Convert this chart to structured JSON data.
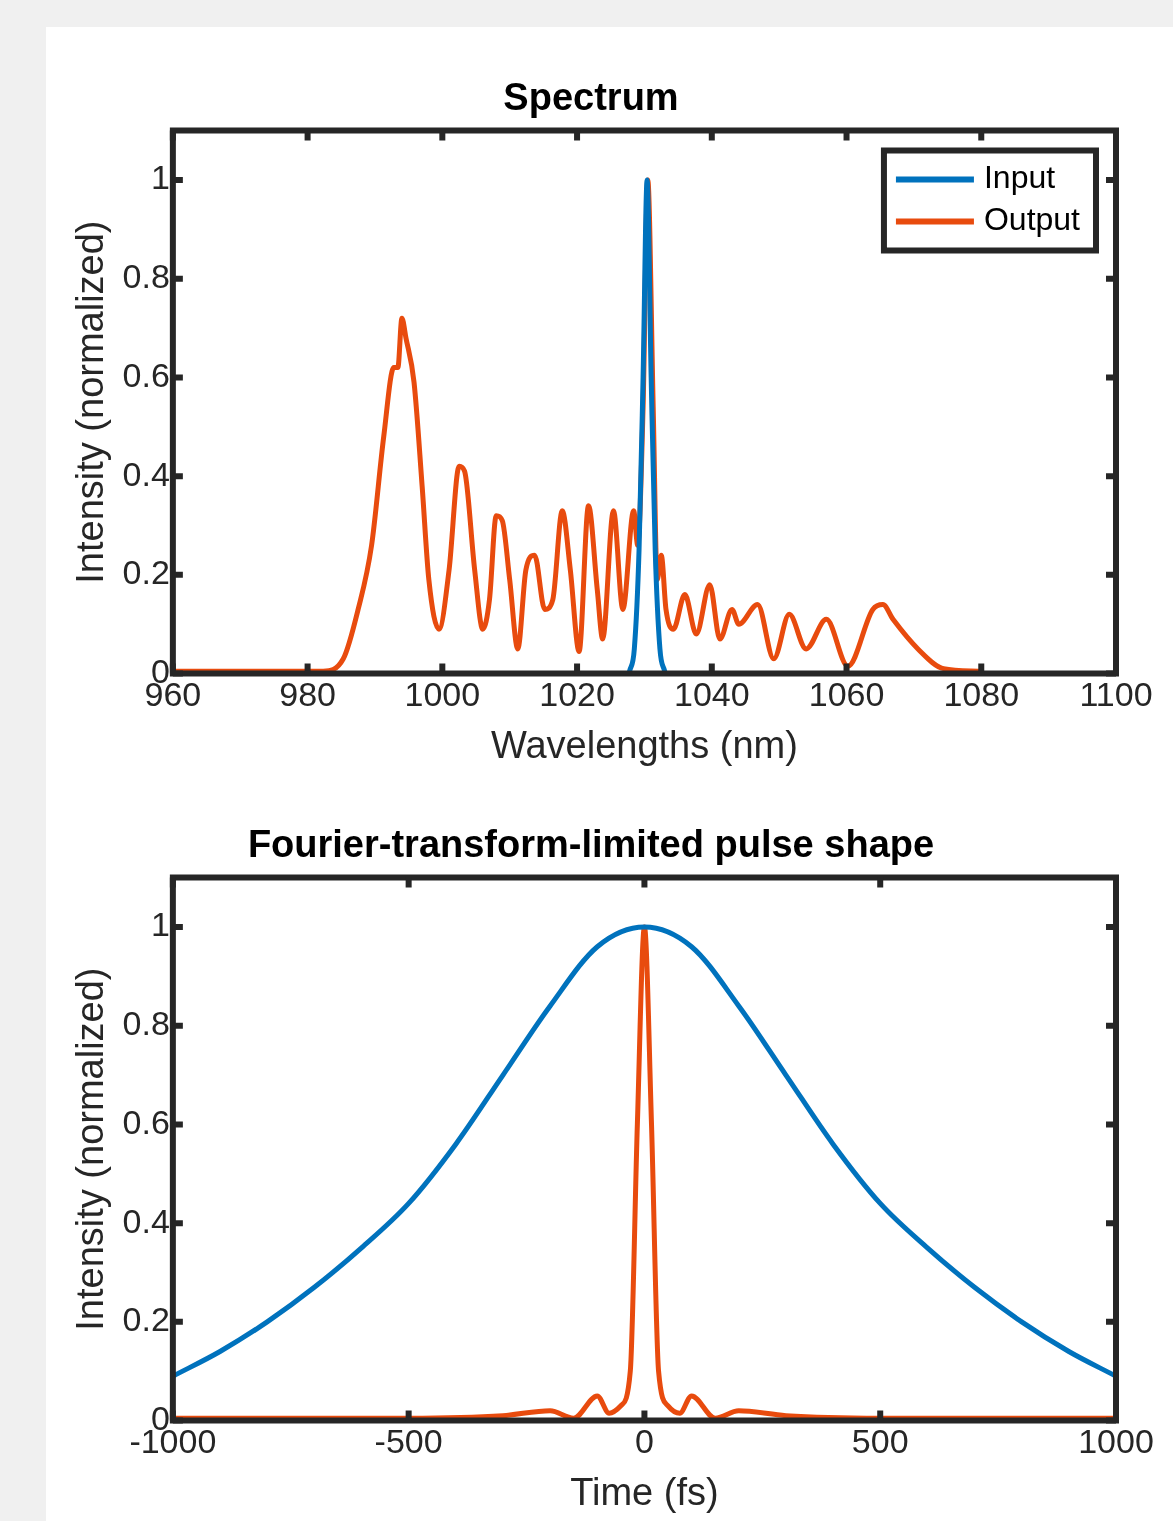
{
  "chart_data": [
    {
      "type": "line",
      "title": "Spectrum",
      "xlabel": "Wavelengths (nm)",
      "ylabel": "Intensity (normalized)",
      "xlim": [
        960,
        1100
      ],
      "xticks": [
        960,
        980,
        1000,
        1020,
        1040,
        1060,
        1080,
        1100
      ],
      "ylim": [
        0,
        1.1
      ],
      "yticks": [
        0,
        0.2,
        0.4,
        0.6,
        0.8,
        1
      ],
      "legend": "top right",
      "marker": "none",
      "series": [
        {
          "name": "Input",
          "color": "#0072bd",
          "x": [
            1027.8,
            1028.5,
            1029.2,
            1029.8,
            1030.4,
            1031,
            1031.6,
            1032.3,
            1033
          ],
          "values": [
            0.005,
            0.05,
            0.25,
            0.6,
            1,
            0.6,
            0.25,
            0.05,
            0.005
          ]
        },
        {
          "name": "Output",
          "color": "#e84b0e",
          "x": [
            960,
            982.3,
            985.3,
            987.5,
            989.5,
            991.3,
            992.8,
            993.4,
            994,
            994.6,
            995.8,
            997,
            998,
            999.5,
            1001,
            1002.5,
            1003.3,
            1004.8,
            1006,
            1007,
            1008,
            1008.9,
            1010,
            1011.2,
            1012.4,
            1013.7,
            1015.2,
            1016.4,
            1017.8,
            1019,
            1020.3,
            1021.7,
            1023,
            1023.8,
            1025.4,
            1026.8,
            1028.4,
            1029,
            1029.8,
            1030.5,
            1031.3,
            1031.9,
            1032.5,
            1033.2,
            1034.3,
            1036,
            1037.7,
            1039.7,
            1041.2,
            1043,
            1044,
            1046.8,
            1049.2,
            1051.5,
            1054,
            1057,
            1060.2,
            1063.9,
            1065.4,
            1066.9,
            1070.6,
            1074.4,
            1079.6
          ],
          "values": [
            0.005,
            0.005,
            0.03,
            0.13,
            0.26,
            0.48,
            0.62,
            0.62,
            0.72,
            0.68,
            0.59,
            0.38,
            0.19,
            0.09,
            0.21,
            0.42,
            0.41,
            0.21,
            0.09,
            0.15,
            0.32,
            0.31,
            0.19,
            0.05,
            0.21,
            0.24,
            0.13,
            0.15,
            0.33,
            0.21,
            0.045,
            0.34,
            0.17,
            0.07,
            0.33,
            0.13,
            0.33,
            0.26,
            0.54,
            1,
            0.54,
            0.19,
            0.24,
            0.13,
            0.09,
            0.16,
            0.08,
            0.18,
            0.07,
            0.13,
            0.1,
            0.14,
            0.03,
            0.12,
            0.05,
            0.11,
            0.015,
            0.13,
            0.14,
            0.11,
            0.05,
            0.01,
            0.005
          ]
        }
      ]
    },
    {
      "type": "line",
      "title": "Fourier-transform-limited pulse shape",
      "xlabel": "Time (fs)",
      "ylabel": "Intensity (normalized)",
      "xlim": [
        -1000,
        1000
      ],
      "xticks": [
        -1000,
        -500,
        0,
        500,
        1000
      ],
      "ylim": [
        0,
        1.1
      ],
      "yticks": [
        0,
        0.2,
        0.4,
        0.6,
        0.8,
        1
      ],
      "marker": "none",
      "series": [
        {
          "color": "#0072bd",
          "x": [
            -1000,
            -900,
            -800,
            -700,
            -600,
            -500,
            -400,
            -300,
            -200,
            -100,
            0,
            100,
            200,
            300,
            400,
            500,
            600,
            700,
            800,
            900,
            1000
          ],
          "values": [
            0.09,
            0.14,
            0.2,
            0.27,
            0.35,
            0.44,
            0.56,
            0.7,
            0.84,
            0.96,
            1,
            0.96,
            0.84,
            0.7,
            0.56,
            0.44,
            0.35,
            0.27,
            0.2,
            0.14,
            0.09
          ]
        },
        {
          "color": "#e84b0e",
          "x": [
            -1000,
            -500,
            -300,
            -200,
            -150,
            -100,
            -75,
            -50,
            -30,
            -15,
            0,
            15,
            30,
            50,
            75,
            100,
            150,
            200,
            300,
            500,
            1000
          ],
          "values": [
            0.005,
            0.005,
            0.01,
            0.02,
            0.005,
            0.05,
            0.015,
            0.03,
            0.1,
            0.6,
            1,
            0.6,
            0.1,
            0.03,
            0.015,
            0.05,
            0.005,
            0.02,
            0.01,
            0.005,
            0.005
          ]
        }
      ]
    }
  ]
}
